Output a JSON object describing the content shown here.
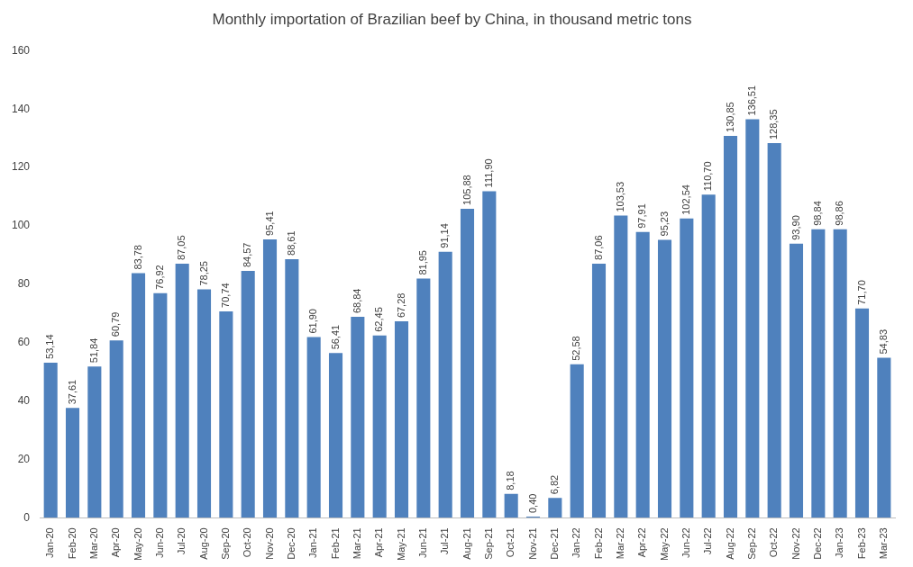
{
  "chart_data": {
    "type": "bar",
    "title": "Monthly importation of Brazilian beef by China, in thousand metric tons",
    "categories": [
      "Jan-20",
      "Feb-20",
      "Mar-20",
      "Apr-20",
      "May-20",
      "Jun-20",
      "Jul-20",
      "Aug-20",
      "Sep-20",
      "Oct-20",
      "Nov-20",
      "Dec-20",
      "Jan-21",
      "Feb-21",
      "Mar-21",
      "Apr-21",
      "May-21",
      "Jun-21",
      "Jul-21",
      "Aug-21",
      "Sep-21",
      "Oct-21",
      "Nov-21",
      "Dec-21",
      "Jan-22",
      "Feb-22",
      "Mar-22",
      "Apr-22",
      "May-22",
      "Jun-22",
      "Jul-22",
      "Aug-22",
      "Sep-22",
      "Oct-22",
      "Nov-22",
      "Dec-22",
      "Jan-23",
      "Feb-23",
      "Mar-23"
    ],
    "values": [
      53.14,
      37.61,
      51.84,
      60.79,
      83.78,
      76.92,
      87.05,
      78.25,
      70.74,
      84.57,
      95.41,
      88.61,
      61.9,
      56.41,
      68.84,
      62.45,
      67.28,
      81.95,
      91.14,
      105.88,
      111.9,
      8.18,
      0.4,
      6.82,
      52.58,
      87.06,
      103.53,
      97.91,
      95.23,
      102.54,
      110.7,
      130.85,
      136.51,
      128.35,
      93.9,
      98.84,
      98.86,
      71.7,
      54.83
    ],
    "value_labels": [
      "53,14",
      "37,61",
      "51,84",
      "60,79",
      "83,78",
      "76,92",
      "87,05",
      "78,25",
      "70,74",
      "84,57",
      "95,41",
      "88,61",
      "61,90",
      "56,41",
      "68,84",
      "62,45",
      "67,28",
      "81,95",
      "91,14",
      "105,88",
      "111,90",
      "8,18",
      "0,40",
      "6,82",
      "52,58",
      "87,06",
      "103,53",
      "97,91",
      "95,23",
      "102,54",
      "110,70",
      "130,85",
      "136,51",
      "128,35",
      "93,90",
      "98,84",
      "98,86",
      "71,70",
      "54,83"
    ],
    "color": "#4f81bd",
    "ylim": [
      0,
      160
    ],
    "yticks": [
      0,
      20,
      40,
      60,
      80,
      100,
      120,
      140,
      160
    ],
    "grid": false,
    "data_labels": true
  }
}
